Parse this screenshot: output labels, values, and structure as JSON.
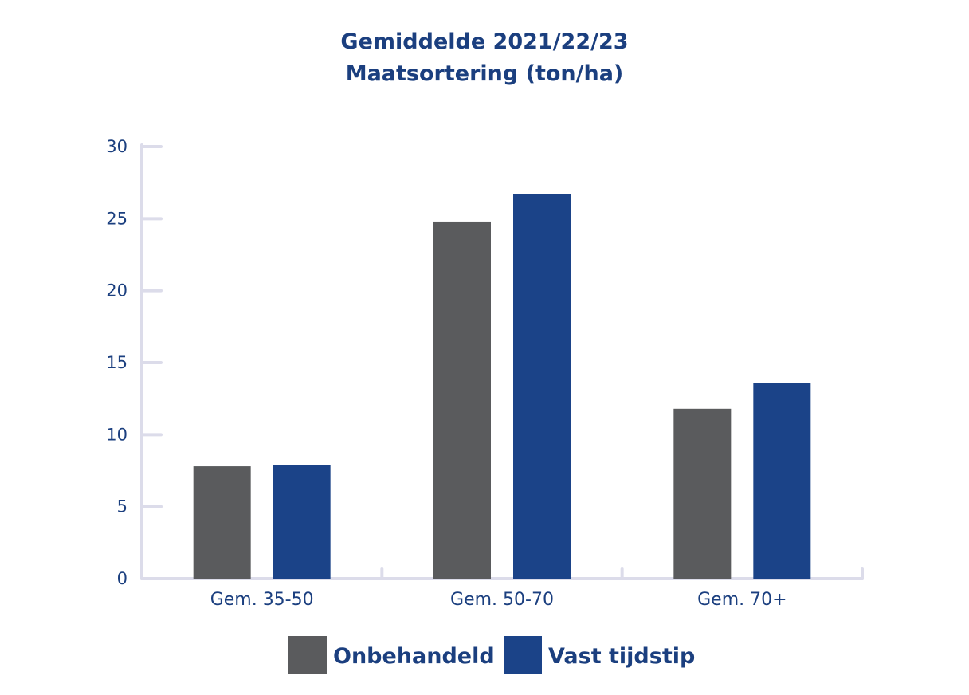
{
  "chart_data": {
    "type": "bar",
    "title": "Gemiddelde 2021/22/23",
    "subtitle": "Maatsortering (ton/ha)",
    "categories": [
      "Gem. 35-50",
      "Gem. 50-70",
      "Gem. 70+"
    ],
    "series": [
      {
        "name": "Onbehandeld",
        "values": [
          7.8,
          24.8,
          11.8
        ],
        "color": "#5a5b5d"
      },
      {
        "name": "Vast tijdstip",
        "values": [
          7.9,
          26.7,
          13.6
        ],
        "color": "#1b4388"
      }
    ],
    "yticks": [
      "0",
      "5",
      "10",
      "15",
      "20",
      "25",
      "30"
    ],
    "ylim": [
      0,
      30
    ],
    "grid": false,
    "legend_position": "bottom",
    "axis_color": "#dcdcea"
  }
}
